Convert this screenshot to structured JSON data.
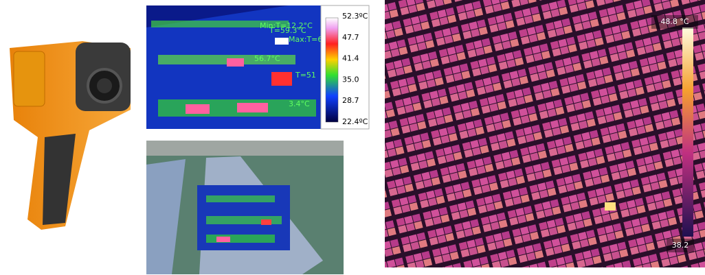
{
  "thermal_view": {
    "overlay_labels": [
      "Min:T=12.2°C",
      "T=59.3°C",
      "Max:T=6",
      "56.7°C",
      "T=51",
      "3.4°C"
    ],
    "scale_labels": [
      "52.3ºC",
      "47.7",
      "41.4",
      "35.0",
      "28.7",
      "22.4ºC"
    ]
  },
  "aerial_view": {
    "scale_max": "48.8 °C",
    "scale_min": "38.2"
  }
}
